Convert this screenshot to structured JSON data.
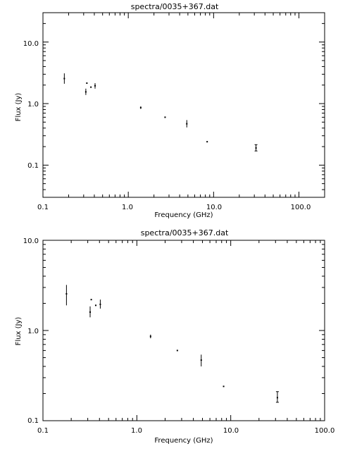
{
  "chart_data": [
    {
      "type": "scatter",
      "title": "spectra/0035+367.dat",
      "xlabel": "Frequency (GHz)",
      "ylabel": "Flux (Jy)",
      "x_scale": "log",
      "y_scale": "log",
      "xlim": [
        0.1,
        200
      ],
      "ylim": [
        0.03,
        30
      ],
      "x_ticks": [
        "0.1",
        "1.0",
        "10.0",
        "100.0"
      ],
      "y_ticks": [
        "0.1",
        "1.0",
        "10.0"
      ],
      "grid": false,
      "series": [
        {
          "points": [
            {
              "x": 0.178,
              "y": 2.55,
              "err": [
                2.1,
                3.1
              ]
            },
            {
              "x": 0.318,
              "y": 1.55,
              "err": [
                1.38,
                1.75
              ]
            },
            {
              "x": 0.327,
              "y": 2.15,
              "err": null
            },
            {
              "x": 0.365,
              "y": 1.85,
              "err": null
            },
            {
              "x": 0.408,
              "y": 1.95,
              "err": [
                1.75,
                2.15
              ]
            },
            {
              "x": 1.4,
              "y": 0.86,
              "err": [
                0.82,
                0.9
              ]
            },
            {
              "x": 2.7,
              "y": 0.6,
              "err": null
            },
            {
              "x": 4.85,
              "y": 0.47,
              "err": [
                0.41,
                0.54
              ]
            },
            {
              "x": 8.4,
              "y": 0.24,
              "err": null
            },
            {
              "x": 31.4,
              "y": 0.19,
              "err": [
                0.17,
                0.215
              ]
            }
          ]
        }
      ]
    },
    {
      "type": "scatter",
      "title": "spectra/0035+367.dat",
      "xlabel": "Frequency (GHz)",
      "ylabel": "Flux (Jy)",
      "x_scale": "log",
      "y_scale": "log",
      "xlim": [
        0.1,
        100
      ],
      "ylim": [
        0.1,
        10
      ],
      "x_ticks": [
        "0.1",
        "1.0",
        "10.0",
        "100.0"
      ],
      "y_ticks": [
        "0.1",
        "1.0",
        "10.0"
      ],
      "grid": false,
      "series": [
        {
          "points": [
            {
              "x": 0.178,
              "y": 2.55,
              "err": [
                1.9,
                3.2
              ]
            },
            {
              "x": 0.318,
              "y": 1.6,
              "err": [
                1.4,
                1.85
              ]
            },
            {
              "x": 0.327,
              "y": 2.2,
              "err": null
            },
            {
              "x": 0.365,
              "y": 1.9,
              "err": null
            },
            {
              "x": 0.408,
              "y": 1.95,
              "err": [
                1.75,
                2.2
              ]
            },
            {
              "x": 1.4,
              "y": 0.86,
              "err": [
                0.82,
                0.9
              ]
            },
            {
              "x": 2.7,
              "y": 0.6,
              "err": null
            },
            {
              "x": 4.85,
              "y": 0.47,
              "err": [
                0.4,
                0.54
              ]
            },
            {
              "x": 8.4,
              "y": 0.24,
              "err": null
            },
            {
              "x": 31.4,
              "y": 0.18,
              "err": [
                0.16,
                0.21
              ]
            }
          ]
        }
      ]
    }
  ]
}
